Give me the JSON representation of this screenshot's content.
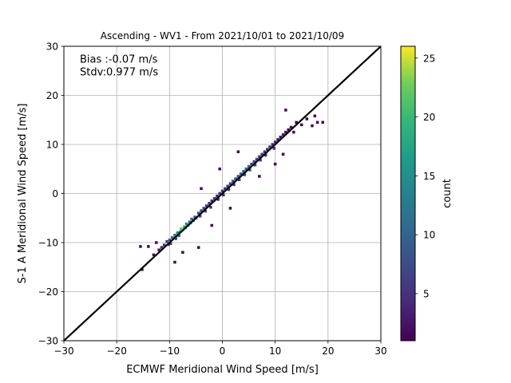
{
  "chart_data": {
    "type": "heatmap",
    "subtype": "2d-histogram-scatter",
    "title": "Ascending - WV1 - From 2021/10/01 to 2021/10/09",
    "xlabel": "ECMWF Meridional Wind Speed [m/s]",
    "ylabel": "S-1 A Meridional Wind Speed [m/s]",
    "xlim": [
      -30,
      30
    ],
    "ylim": [
      -30,
      30
    ],
    "xticks": [
      -30,
      -20,
      -10,
      0,
      10,
      20,
      30
    ],
    "yticks": [
      -30,
      -20,
      -10,
      0,
      10,
      20,
      30
    ],
    "grid": true,
    "reference_line": {
      "label": "y = x",
      "color": "#000000"
    },
    "annotations": {
      "bias": "Bias :-0.07 m/s",
      "stdv": "Stdv:0.977 m/s"
    },
    "colorbar": {
      "label": "count",
      "colormap": "viridis",
      "range": [
        1,
        26
      ],
      "ticks": [
        5,
        10,
        15,
        20,
        25
      ]
    },
    "points": [
      [
        -15.5,
        -10.8,
        1
      ],
      [
        -15.2,
        -15.5,
        1
      ],
      [
        -14.0,
        -10.8,
        1
      ],
      [
        -13.0,
        -12.5,
        2
      ],
      [
        -12.5,
        -10.0,
        2
      ],
      [
        -12.0,
        -11.5,
        3
      ],
      [
        -11.5,
        -11.0,
        4
      ],
      [
        -11.0,
        -10.5,
        5
      ],
      [
        -10.5,
        -9.8,
        6
      ],
      [
        -10.2,
        -10.4,
        4
      ],
      [
        -10.0,
        -9.5,
        8
      ],
      [
        -9.8,
        -10.2,
        5
      ],
      [
        -9.5,
        -9.0,
        10
      ],
      [
        -9.0,
        -8.5,
        12
      ],
      [
        -8.8,
        -9.2,
        8
      ],
      [
        -8.5,
        -8.0,
        15
      ],
      [
        -8.2,
        -8.6,
        11
      ],
      [
        -8.0,
        -7.8,
        18
      ],
      [
        -7.8,
        -7.2,
        21
      ],
      [
        -7.5,
        -7.5,
        24
      ],
      [
        -7.2,
        -6.8,
        19
      ],
      [
        -7.0,
        -7.0,
        16
      ],
      [
        -6.8,
        -6.2,
        14
      ],
      [
        -6.5,
        -6.5,
        13
      ],
      [
        -6.2,
        -5.8,
        11
      ],
      [
        -6.0,
        -6.0,
        12
      ],
      [
        -5.8,
        -5.2,
        10
      ],
      [
        -5.5,
        -5.5,
        9
      ],
      [
        -5.2,
        -4.8,
        9
      ],
      [
        -5.0,
        -5.0,
        8
      ],
      [
        -4.5,
        -4.0,
        8
      ],
      [
        -4.2,
        -4.6,
        7
      ],
      [
        -4.0,
        -3.5,
        7
      ],
      [
        -3.5,
        -3.0,
        7
      ],
      [
        -3.2,
        -3.6,
        6
      ],
      [
        -3.0,
        -2.5,
        6
      ],
      [
        -2.5,
        -2.0,
        6
      ],
      [
        -2.2,
        -2.8,
        5
      ],
      [
        -2.0,
        -1.5,
        5
      ],
      [
        -1.5,
        -1.0,
        5
      ],
      [
        -1.0,
        -0.5,
        5
      ],
      [
        -0.8,
        -1.2,
        4
      ],
      [
        -0.5,
        0.0,
        5
      ],
      [
        0.0,
        0.5,
        5
      ],
      [
        0.2,
        -0.3,
        4
      ],
      [
        0.5,
        1.0,
        6
      ],
      [
        1.0,
        1.5,
        6
      ],
      [
        1.2,
        0.8,
        5
      ],
      [
        1.5,
        2.0,
        7
      ],
      [
        2.0,
        2.5,
        7
      ],
      [
        2.2,
        1.8,
        6
      ],
      [
        2.5,
        3.0,
        8
      ],
      [
        3.0,
        3.5,
        8
      ],
      [
        3.2,
        2.8,
        7
      ],
      [
        3.5,
        4.0,
        9
      ],
      [
        4.0,
        4.5,
        9
      ],
      [
        4.2,
        3.8,
        8
      ],
      [
        4.5,
        5.0,
        10
      ],
      [
        5.0,
        5.5,
        9
      ],
      [
        5.2,
        4.8,
        8
      ],
      [
        5.5,
        6.0,
        8
      ],
      [
        6.0,
        6.5,
        7
      ],
      [
        6.2,
        5.8,
        7
      ],
      [
        6.5,
        7.0,
        7
      ],
      [
        7.0,
        7.5,
        6
      ],
      [
        7.2,
        6.8,
        6
      ],
      [
        7.5,
        8.0,
        6
      ],
      [
        8.0,
        8.5,
        5
      ],
      [
        8.2,
        7.8,
        5
      ],
      [
        8.5,
        9.0,
        5
      ],
      [
        9.0,
        9.5,
        5
      ],
      [
        9.5,
        10.0,
        4
      ],
      [
        9.8,
        9.2,
        4
      ],
      [
        10.0,
        10.5,
        4
      ],
      [
        10.5,
        11.0,
        3
      ],
      [
        11.0,
        11.5,
        3
      ],
      [
        11.5,
        12.0,
        3
      ],
      [
        12.0,
        12.5,
        2
      ],
      [
        12.5,
        13.0,
        2
      ],
      [
        13.0,
        13.5,
        2
      ],
      [
        13.5,
        12.5,
        2
      ],
      [
        14.0,
        14.5,
        1
      ],
      [
        15.0,
        14.0,
        1
      ],
      [
        16.0,
        15.2,
        1
      ],
      [
        17.0,
        13.8,
        1
      ],
      [
        18.0,
        14.5,
        1
      ],
      [
        19.0,
        14.5,
        1
      ],
      [
        17.5,
        15.8,
        1
      ],
      [
        12.0,
        17.0,
        1
      ],
      [
        3.0,
        8.5,
        1
      ],
      [
        -0.5,
        5.0,
        1
      ],
      [
        -4.0,
        1.0,
        1
      ],
      [
        -4.5,
        -11.0,
        1
      ],
      [
        -2.0,
        -6.5,
        1
      ],
      [
        1.5,
        -3.0,
        1
      ],
      [
        10.0,
        6.0,
        1
      ],
      [
        11.5,
        8.0,
        1
      ],
      [
        7.0,
        3.5,
        1
      ],
      [
        -7.5,
        -12.0,
        1
      ],
      [
        -9.0,
        -14.0,
        1
      ]
    ]
  }
}
